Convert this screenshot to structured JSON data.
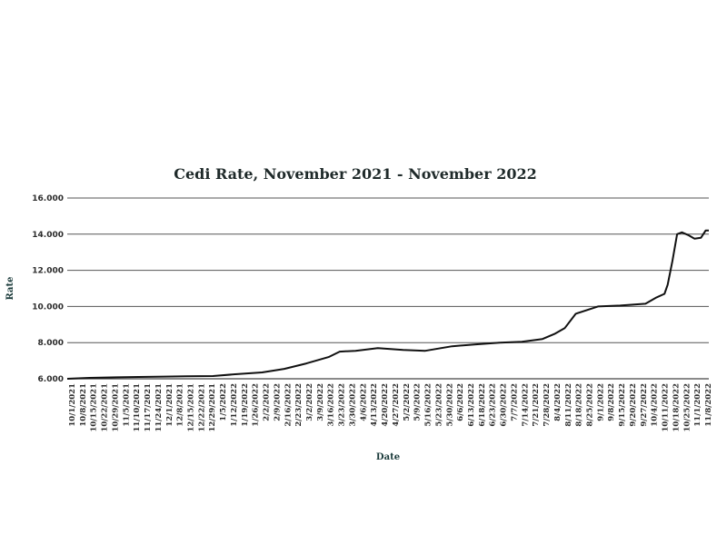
{
  "chart_data": {
    "type": "line",
    "title": "Cedi Rate, November 2021 - November 2022",
    "xlabel": "Date",
    "ylabel": "Rate",
    "ylim": [
      6.0,
      16.0
    ],
    "yticks": [
      "16.000",
      "14.000",
      "12.000",
      "10.000",
      "8.000",
      "6.000"
    ],
    "grid": true,
    "legend": "none",
    "colors": {
      "line": "#111111",
      "grid": "#555555",
      "title": "#1f2a2a"
    },
    "x_tick_labels": [
      "10/1/2021",
      "10/8/2021",
      "10/15/2021",
      "10/22/2021",
      "10/29/2021",
      "11/5/2021",
      "11/10/2021",
      "11/17/2021",
      "11/24/2021",
      "12/1/2021",
      "12/8/2021",
      "12/15/2021",
      "12/22/2021",
      "12/29/2021",
      "1/5/2022",
      "1/12/2022",
      "1/19/2022",
      "1/26/2022",
      "2/2/2022",
      "2/9/2022",
      "2/16/2022",
      "2/23/2022",
      "3/2/2022",
      "3/9/2022",
      "3/16/2022",
      "3/23/2022",
      "3/30/2022",
      "4/6/2022",
      "4/13/2022",
      "4/20/2022",
      "4/27/2022",
      "5/2/2022",
      "5/9/2022",
      "5/16/2022",
      "5/23/2022",
      "5/30/2022",
      "6/6/2022",
      "6/13/2022",
      "6/18/2022",
      "6/23/2022",
      "6/30/2022",
      "7/7/2022",
      "7/14/2022",
      "7/21/2022",
      "7/28/2022",
      "8/4/2022",
      "8/11/2022",
      "8/18/2022",
      "8/25/2022",
      "9/1/2022",
      "9/8/2022",
      "9/15/2022",
      "9/20/2022",
      "9/27/2022",
      "10/4/2022",
      "10/11/2022",
      "10/18/2022",
      "10/25/2022",
      "11/1/2022",
      "11/8/2022"
    ],
    "x": [
      "2021-10-01",
      "2021-10-15",
      "2021-11-01",
      "2021-11-15",
      "2021-12-01",
      "2021-12-15",
      "2022-01-01",
      "2022-01-15",
      "2022-02-01",
      "2022-02-15",
      "2022-03-01",
      "2022-03-15",
      "2022-03-22",
      "2022-04-01",
      "2022-04-15",
      "2022-05-01",
      "2022-05-15",
      "2022-06-01",
      "2022-06-15",
      "2022-07-01",
      "2022-07-15",
      "2022-07-28",
      "2022-08-05",
      "2022-08-11",
      "2022-08-18",
      "2022-09-01",
      "2022-09-15",
      "2022-10-01",
      "2022-10-08",
      "2022-10-13",
      "2022-10-15",
      "2022-10-18",
      "2022-10-21",
      "2022-10-24",
      "2022-10-28",
      "2022-11-01",
      "2022-11-05",
      "2022-11-08",
      "2022-11-10"
    ],
    "series": [
      {
        "values": [
          6.0,
          6.05,
          6.08,
          6.1,
          6.12,
          6.14,
          6.15,
          6.25,
          6.35,
          6.55,
          6.85,
          7.2,
          7.5,
          7.55,
          7.7,
          7.6,
          7.55,
          7.8,
          7.9,
          8.0,
          8.05,
          8.2,
          8.5,
          8.8,
          9.6,
          10.0,
          10.05,
          10.15,
          10.5,
          10.7,
          11.2,
          12.5,
          14.0,
          14.1,
          13.95,
          13.75,
          13.8,
          14.2,
          14.2
        ]
      }
    ]
  }
}
